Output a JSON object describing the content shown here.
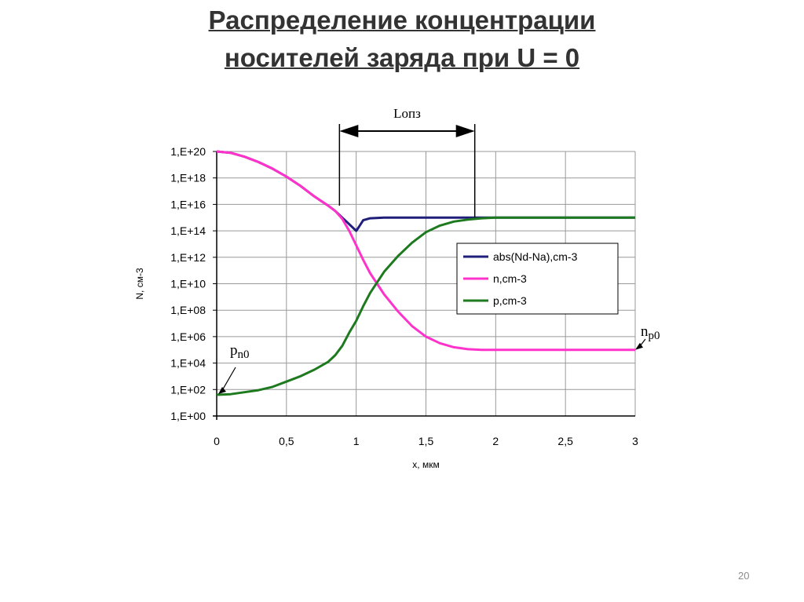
{
  "slide": {
    "title_line1": "Распределение концентрации",
    "title_line2": "носителей заряда при U = 0",
    "page_number": "20"
  },
  "colors": {
    "nd_na": "#1f1f7a",
    "n": "#ff33cc",
    "p": "#1e7a1e",
    "grid": "#999999",
    "text": "#000000"
  },
  "chart_data": {
    "type": "line",
    "title": "",
    "xlabel": "x, мкм",
    "ylabel": "N, см-3",
    "xlim": [
      0,
      3
    ],
    "ylim_log10": [
      0,
      20
    ],
    "y_scale": "log",
    "grid": true,
    "legend_position": "right",
    "x_ticks": [
      0,
      0.5,
      1,
      1.5,
      2,
      2.5,
      3
    ],
    "x_tick_labels": [
      "0",
      "0,5",
      "1",
      "1,5",
      "2",
      "2,5",
      "3"
    ],
    "y_ticks_log10": [
      0,
      2,
      4,
      6,
      8,
      10,
      12,
      14,
      16,
      18,
      20
    ],
    "y_tick_labels": [
      "1,E+00",
      "1,E+02",
      "1,E+04",
      "1,E+06",
      "1,E+08",
      "1,E+10",
      "1,E+12",
      "1,E+14",
      "1,E+16",
      "1,E+18",
      "1,E+20"
    ],
    "series": [
      {
        "name": "abs(Nd-Na),cm-3",
        "color_key": "nd_na",
        "x": [
          0,
          0.1,
          0.2,
          0.3,
          0.4,
          0.5,
          0.6,
          0.7,
          0.8,
          0.85,
          0.9,
          0.95,
          0.98,
          1.0,
          1.02,
          1.05,
          1.1,
          1.2,
          1.5,
          2.0,
          2.5,
          3.0
        ],
        "y_log10": [
          20,
          19.9,
          19.6,
          19.2,
          18.7,
          18.1,
          17.4,
          16.6,
          15.9,
          15.5,
          15.0,
          14.5,
          14.2,
          14.0,
          14.3,
          14.8,
          14.95,
          15.0,
          15.0,
          15.0,
          15.0,
          15.0
        ]
      },
      {
        "name": "n,cm-3",
        "color_key": "n",
        "x": [
          0,
          0.1,
          0.2,
          0.3,
          0.4,
          0.5,
          0.6,
          0.7,
          0.8,
          0.85,
          0.9,
          0.95,
          1.0,
          1.05,
          1.1,
          1.2,
          1.3,
          1.4,
          1.5,
          1.6,
          1.7,
          1.8,
          1.9,
          2.0,
          2.5,
          3.0
        ],
        "y_log10": [
          20,
          19.9,
          19.6,
          19.2,
          18.7,
          18.1,
          17.4,
          16.6,
          15.9,
          15.5,
          14.9,
          14.0,
          12.9,
          11.8,
          10.8,
          9.2,
          7.9,
          6.8,
          6.0,
          5.5,
          5.2,
          5.05,
          5.0,
          5.0,
          5.0,
          5.0
        ]
      },
      {
        "name": "p,cm-3",
        "color_key": "p",
        "x": [
          0,
          0.1,
          0.2,
          0.3,
          0.4,
          0.5,
          0.6,
          0.7,
          0.8,
          0.85,
          0.9,
          0.95,
          1.0,
          1.05,
          1.1,
          1.2,
          1.3,
          1.4,
          1.5,
          1.6,
          1.7,
          1.8,
          1.9,
          2.0,
          2.5,
          3.0
        ],
        "y_log10": [
          1.6,
          1.65,
          1.8,
          1.95,
          2.2,
          2.6,
          3.0,
          3.5,
          4.1,
          4.6,
          5.3,
          6.3,
          7.2,
          8.3,
          9.3,
          10.9,
          12.1,
          13.1,
          13.9,
          14.4,
          14.7,
          14.85,
          14.95,
          15.0,
          15.0,
          15.0
        ]
      }
    ],
    "annotations": {
      "depletion_label": "Lопз",
      "depletion_x_range": [
        0.88,
        1.85
      ],
      "pn0_label_main": "p",
      "pn0_label_sub": "n0",
      "pn0_target": [
        0,
        1.6
      ],
      "np0_label_main": "n",
      "np0_label_sub": "p0",
      "np0_target": [
        3,
        5
      ]
    }
  }
}
